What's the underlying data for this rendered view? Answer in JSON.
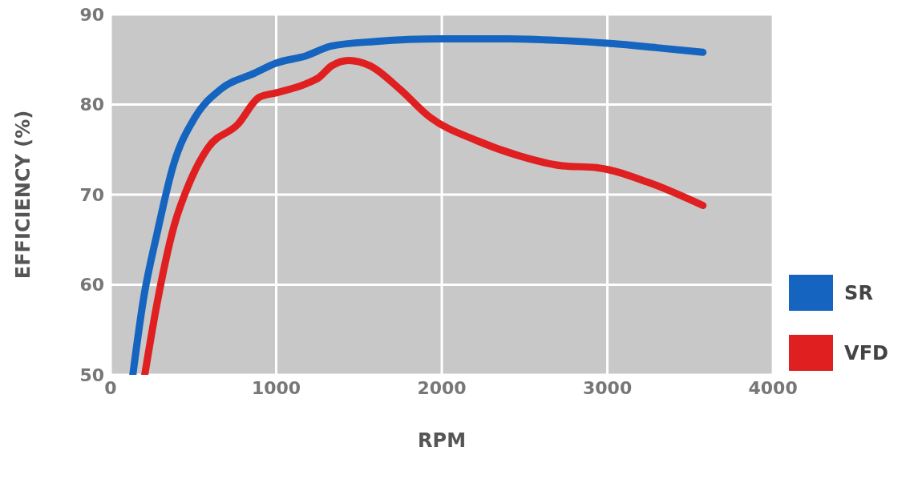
{
  "chart_data": {
    "type": "line",
    "xlabel": "RPM",
    "ylabel": "EFFICIENCY (%)",
    "xlim": [
      0,
      4000
    ],
    "xticks": [
      0,
      1000,
      2000,
      3000,
      4000
    ],
    "ylim": [
      50,
      90
    ],
    "yticks": [
      50,
      60,
      70,
      80,
      90
    ],
    "grid": true,
    "legend": "right",
    "marker": "none",
    "line_style": "solid",
    "series": [
      {
        "name": "SR",
        "color": "#1565c0",
        "x": [
          134,
          200,
          278,
          381,
          510,
          665,
          871,
          1000,
          1180,
          1335,
          1600,
          2000,
          2400,
          2727,
          3000,
          3300,
          3577
        ],
        "values": [
          50,
          58.6,
          65.5,
          73.4,
          78.6,
          81.7,
          83.5,
          84.6,
          85.4,
          86.5,
          87,
          87.3,
          87.3,
          87.1,
          86.8,
          86.3,
          85.8
        ]
      },
      {
        "name": "VFD",
        "color": "#e02020",
        "x": [
          206,
          278,
          381,
          485,
          588,
          768,
          897,
          1000,
          1180,
          1258,
          1335,
          1438,
          1567,
          1747,
          1928,
          2211,
          2469,
          2727,
          2933,
          3242,
          3577
        ],
        "values": [
          50,
          57.7,
          66.4,
          71.7,
          75.2,
          77.8,
          80.8,
          81.3,
          82.3,
          83,
          84.3,
          84.9,
          84.3,
          81.7,
          78.6,
          76,
          74.3,
          73.2,
          73,
          71.4,
          68.8
        ]
      }
    ]
  }
}
